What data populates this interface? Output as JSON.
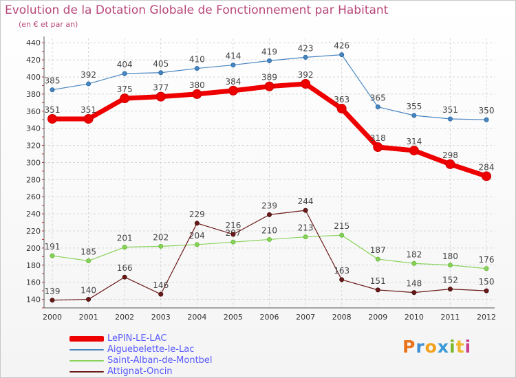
{
  "header": {
    "title": "Evolution de la Dotation Globale de Fonctionnement par Habitant",
    "subtitle": "(en € et par an)"
  },
  "logo": {
    "letters": [
      "P",
      "r",
      "o",
      "x",
      "i",
      "t",
      "i"
    ],
    "colors": [
      "#e8731a",
      "#3f8fd2",
      "#f2a11c",
      "#3b9ad6",
      "#7ab829",
      "#f0b52a",
      "#cc3f8e"
    ]
  },
  "chart_data": {
    "type": "line",
    "title": "Evolution de la Dotation Globale de Fonctionnement par Habitant",
    "subtitle": "(en € et par an)",
    "x": [
      "2000",
      "2001",
      "2002",
      "2003",
      "2004",
      "2005",
      "2006",
      "2007",
      "2008",
      "2009",
      "2010",
      "2011",
      "2012"
    ],
    "ylim": [
      130,
      445
    ],
    "yticks": [
      140,
      160,
      180,
      200,
      220,
      240,
      260,
      280,
      300,
      320,
      340,
      360,
      380,
      400,
      420,
      440
    ],
    "grid": true,
    "legend_position": "bottom-left",
    "series": [
      {
        "name": "LePIN-LE-LAC",
        "color": "#ee0000",
        "values": [
          351,
          351,
          375,
          377,
          380,
          384,
          389,
          392,
          363,
          318,
          314,
          298,
          284
        ]
      },
      {
        "name": "Aiguebelette-le-Lac",
        "color": "#4a86c0",
        "values": [
          385,
          392,
          404,
          405,
          410,
          414,
          419,
          423,
          426,
          365,
          355,
          351,
          350
        ]
      },
      {
        "name": "Saint-Alban-de-Montbel",
        "color": "#88d35a",
        "values": [
          191,
          185,
          201,
          202,
          204,
          207,
          210,
          213,
          215,
          187,
          182,
          180,
          176
        ]
      },
      {
        "name": "Attignat-Oncin",
        "color": "#6b1a1a",
        "values": [
          139,
          140,
          166,
          146,
          229,
          216,
          239,
          244,
          163,
          151,
          148,
          152,
          150
        ]
      }
    ]
  }
}
